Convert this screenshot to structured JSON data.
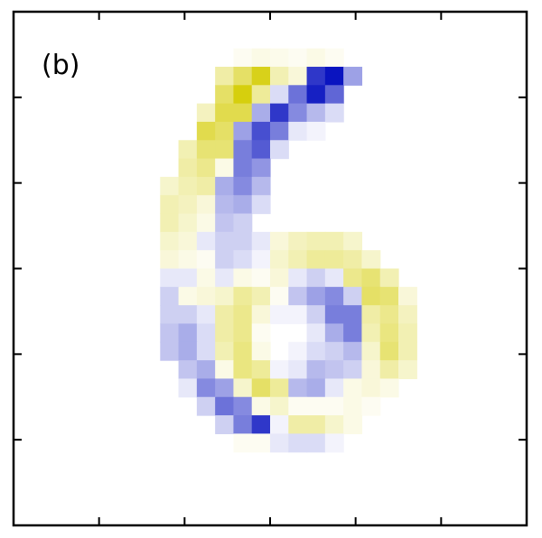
{
  "figure": {
    "panel_label": "(b)"
  },
  "chart_data": {
    "type": "heatmap",
    "title": "",
    "xlabel": "",
    "ylabel": "",
    "rows": 28,
    "cols": 28,
    "xlim": [
      0,
      28
    ],
    "ylim": [
      0,
      28
    ],
    "grid": false,
    "x_tick_count": 6,
    "y_tick_count": 6,
    "tick_labels": false,
    "colormap": {
      "negative": "#0a14c0",
      "zero": "#ffffff",
      "positive": "#d4cc00"
    },
    "value_range": [
      -1,
      1
    ],
    "cells": [
      [
        2,
        12,
        0.05
      ],
      [
        2,
        13,
        0.1
      ],
      [
        2,
        14,
        0.08
      ],
      [
        2,
        15,
        0.05
      ],
      [
        2,
        16,
        0.1
      ],
      [
        2,
        17,
        0.05
      ],
      [
        3,
        11,
        0.35
      ],
      [
        3,
        12,
        0.6
      ],
      [
        3,
        13,
        0.9
      ],
      [
        3,
        14,
        0.3
      ],
      [
        3,
        15,
        0.15
      ],
      [
        3,
        16,
        -0.85
      ],
      [
        3,
        17,
        -1.0
      ],
      [
        3,
        18,
        -0.4
      ],
      [
        4,
        11,
        0.6
      ],
      [
        4,
        12,
        0.95
      ],
      [
        4,
        13,
        0.4
      ],
      [
        4,
        14,
        -0.15
      ],
      [
        4,
        15,
        -0.6
      ],
      [
        4,
        16,
        -0.95
      ],
      [
        4,
        17,
        -0.65
      ],
      [
        5,
        10,
        0.25
      ],
      [
        5,
        11,
        0.7
      ],
      [
        5,
        12,
        0.7
      ],
      [
        5,
        13,
        -0.35
      ],
      [
        5,
        14,
        -0.85
      ],
      [
        5,
        15,
        -0.5
      ],
      [
        5,
        16,
        -0.3
      ],
      [
        5,
        17,
        -0.15
      ],
      [
        6,
        10,
        0.7
      ],
      [
        6,
        11,
        0.6
      ],
      [
        6,
        12,
        -0.4
      ],
      [
        6,
        13,
        -0.75
      ],
      [
        6,
        14,
        -0.55
      ],
      [
        6,
        15,
        -0.1
      ],
      [
        6,
        16,
        -0.05
      ],
      [
        7,
        9,
        0.3
      ],
      [
        7,
        10,
        0.55
      ],
      [
        7,
        11,
        0.55
      ],
      [
        7,
        12,
        -0.55
      ],
      [
        7,
        13,
        -0.7
      ],
      [
        7,
        14,
        -0.15
      ],
      [
        8,
        9,
        0.35
      ],
      [
        8,
        10,
        0.45
      ],
      [
        8,
        11,
        0.1
      ],
      [
        8,
        12,
        -0.55
      ],
      [
        8,
        13,
        -0.45
      ],
      [
        9,
        8,
        0.2
      ],
      [
        9,
        9,
        0.3
      ],
      [
        9,
        10,
        0.35
      ],
      [
        9,
        11,
        -0.35
      ],
      [
        9,
        12,
        -0.5
      ],
      [
        9,
        13,
        -0.3
      ],
      [
        10,
        8,
        0.3
      ],
      [
        10,
        9,
        0.25
      ],
      [
        10,
        10,
        0.15
      ],
      [
        10,
        11,
        -0.3
      ],
      [
        10,
        12,
        -0.35
      ],
      [
        10,
        13,
        -0.15
      ],
      [
        11,
        8,
        0.3
      ],
      [
        11,
        9,
        0.2
      ],
      [
        11,
        10,
        0.1
      ],
      [
        11,
        11,
        -0.25
      ],
      [
        11,
        12,
        -0.2
      ],
      [
        12,
        8,
        0.2
      ],
      [
        12,
        9,
        0.15
      ],
      [
        12,
        10,
        -0.1
      ],
      [
        12,
        11,
        -0.2
      ],
      [
        12,
        12,
        -0.2
      ],
      [
        12,
        13,
        -0.1
      ],
      [
        12,
        14,
        0.15
      ],
      [
        12,
        15,
        0.25
      ],
      [
        12,
        16,
        0.3
      ],
      [
        12,
        17,
        0.3
      ],
      [
        12,
        18,
        0.2
      ],
      [
        13,
        8,
        0.15
      ],
      [
        13,
        9,
        0.1
      ],
      [
        13,
        10,
        0.05
      ],
      [
        13,
        11,
        -0.2
      ],
      [
        13,
        12,
        -0.15
      ],
      [
        13,
        13,
        -0.05
      ],
      [
        13,
        14,
        0.2
      ],
      [
        13,
        15,
        0.3
      ],
      [
        13,
        16,
        0.4
      ],
      [
        13,
        17,
        0.4
      ],
      [
        13,
        18,
        0.35
      ],
      [
        13,
        19,
        0.2
      ],
      [
        14,
        8,
        -0.1
      ],
      [
        14,
        9,
        -0.1
      ],
      [
        14,
        10,
        0.1
      ],
      [
        14,
        11,
        -0.1
      ],
      [
        14,
        12,
        0.1
      ],
      [
        14,
        13,
        0.05
      ],
      [
        14,
        14,
        0.15
      ],
      [
        14,
        15,
        -0.1
      ],
      [
        14,
        16,
        -0.2
      ],
      [
        14,
        17,
        -0.1
      ],
      [
        14,
        18,
        0.45
      ],
      [
        14,
        19,
        0.55
      ],
      [
        14,
        20,
        0.3
      ],
      [
        15,
        8,
        -0.2
      ],
      [
        15,
        9,
        0.1
      ],
      [
        15,
        10,
        0.15
      ],
      [
        15,
        11,
        0.2
      ],
      [
        15,
        12,
        0.4
      ],
      [
        15,
        13,
        0.3
      ],
      [
        15,
        14,
        0.05
      ],
      [
        15,
        15,
        -0.25
      ],
      [
        15,
        16,
        -0.4
      ],
      [
        15,
        17,
        -0.5
      ],
      [
        15,
        18,
        -0.2
      ],
      [
        15,
        19,
        0.6
      ],
      [
        15,
        20,
        0.55
      ],
      [
        15,
        21,
        0.15
      ],
      [
        16,
        8,
        -0.2
      ],
      [
        16,
        9,
        -0.2
      ],
      [
        16,
        10,
        -0.1
      ],
      [
        16,
        11,
        0.35
      ],
      [
        16,
        12,
        0.45
      ],
      [
        16,
        13,
        0.15
      ],
      [
        16,
        14,
        -0.05
      ],
      [
        16,
        15,
        -0.05
      ],
      [
        16,
        16,
        -0.2
      ],
      [
        16,
        17,
        -0.55
      ],
      [
        16,
        18,
        -0.55
      ],
      [
        16,
        19,
        0.35
      ],
      [
        16,
        20,
        0.45
      ],
      [
        16,
        21,
        0.25
      ],
      [
        17,
        8,
        -0.25
      ],
      [
        17,
        9,
        -0.35
      ],
      [
        17,
        10,
        -0.15
      ],
      [
        17,
        11,
        0.35
      ],
      [
        17,
        12,
        0.45
      ],
      [
        17,
        13,
        0.05
      ],
      [
        17,
        16,
        -0.1
      ],
      [
        17,
        17,
        -0.35
      ],
      [
        17,
        18,
        -0.55
      ],
      [
        17,
        19,
        0.3
      ],
      [
        17,
        20,
        0.5
      ],
      [
        17,
        21,
        0.3
      ],
      [
        18,
        8,
        -0.25
      ],
      [
        18,
        9,
        -0.35
      ],
      [
        18,
        10,
        -0.15
      ],
      [
        18,
        11,
        0.3
      ],
      [
        18,
        12,
        0.5
      ],
      [
        18,
        13,
        0.1
      ],
      [
        18,
        15,
        -0.05
      ],
      [
        18,
        16,
        -0.15
      ],
      [
        18,
        17,
        -0.2
      ],
      [
        18,
        18,
        -0.3
      ],
      [
        18,
        19,
        0.2
      ],
      [
        18,
        20,
        0.55
      ],
      [
        18,
        21,
        0.3
      ],
      [
        19,
        9,
        -0.25
      ],
      [
        19,
        10,
        -0.35
      ],
      [
        19,
        11,
        0.1
      ],
      [
        19,
        12,
        0.5
      ],
      [
        19,
        13,
        0.4
      ],
      [
        19,
        14,
        -0.05
      ],
      [
        19,
        15,
        -0.1
      ],
      [
        19,
        16,
        -0.3
      ],
      [
        19,
        17,
        -0.25
      ],
      [
        19,
        18,
        -0.2
      ],
      [
        19,
        19,
        0.15
      ],
      [
        19,
        20,
        0.35
      ],
      [
        19,
        21,
        0.2
      ],
      [
        20,
        9,
        -0.1
      ],
      [
        20,
        10,
        -0.5
      ],
      [
        20,
        11,
        -0.4
      ],
      [
        20,
        12,
        0.2
      ],
      [
        20,
        13,
        0.6
      ],
      [
        20,
        14,
        0.4
      ],
      [
        20,
        15,
        -0.3
      ],
      [
        20,
        16,
        -0.35
      ],
      [
        20,
        17,
        -0.1
      ],
      [
        20,
        18,
        0.1
      ],
      [
        20,
        19,
        0.15
      ],
      [
        20,
        20,
        0.1
      ],
      [
        21,
        10,
        -0.2
      ],
      [
        21,
        11,
        -0.6
      ],
      [
        21,
        12,
        -0.5
      ],
      [
        21,
        13,
        0.1
      ],
      [
        21,
        14,
        0.2
      ],
      [
        21,
        15,
        0.05
      ],
      [
        21,
        16,
        0.05
      ],
      [
        21,
        17,
        0.05
      ],
      [
        21,
        18,
        0.1
      ],
      [
        21,
        19,
        0.05
      ],
      [
        22,
        11,
        -0.2
      ],
      [
        22,
        12,
        -0.55
      ],
      [
        22,
        13,
        -0.85
      ],
      [
        22,
        14,
        -0.05
      ],
      [
        22,
        15,
        0.35
      ],
      [
        22,
        16,
        0.35
      ],
      [
        22,
        17,
        0.2
      ],
      [
        22,
        18,
        0.1
      ],
      [
        23,
        12,
        0.05
      ],
      [
        23,
        13,
        0.05
      ],
      [
        23,
        14,
        -0.1
      ],
      [
        23,
        15,
        -0.15
      ],
      [
        23,
        16,
        -0.15
      ],
      [
        23,
        17,
        -0.05
      ]
    ]
  }
}
